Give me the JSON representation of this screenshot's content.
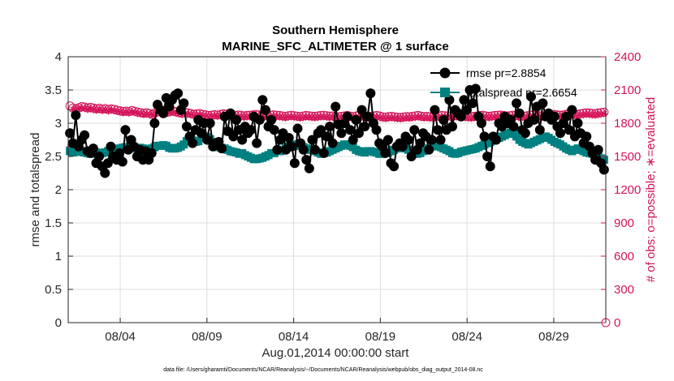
{
  "chart_data": {
    "type": "line",
    "title": "Southern Hemisphere",
    "subtitle": "MARINE_SFC_ALTIMETER @ 1 surface",
    "xlabel": "Aug.01,2014 00:00:00 start",
    "ylabel": "rmse and totalspread",
    "ylabel_right": "# of obs: o=possible; ∗=evaluated",
    "xlim": [
      "2014-08-01",
      "2014-09-01"
    ],
    "ylim": [
      0,
      4
    ],
    "ylim_right": [
      0,
      2400
    ],
    "x_ticks": [
      "08/04",
      "08/09",
      "08/14",
      "08/19",
      "08/24",
      "08/29"
    ],
    "y_ticks": [
      "0",
      "0.5",
      "1",
      "1.5",
      "2",
      "2.5",
      "3",
      "3.5",
      "4"
    ],
    "y_ticks_right": [
      "0",
      "300",
      "600",
      "900",
      "1200",
      "1500",
      "1800",
      "2100",
      "2400"
    ],
    "grid": true,
    "legend_position": "top-right",
    "series": [
      {
        "name": "rmse pr=2.8854",
        "color": "#000000",
        "marker": "circle",
        "axis": "left",
        "values": [
          2.85,
          2.7,
          3.12,
          2.65,
          2.75,
          2.82,
          2.58,
          2.55,
          2.62,
          2.4,
          2.5,
          2.35,
          2.25,
          2.4,
          2.65,
          2.5,
          2.45,
          2.55,
          2.42,
          2.9,
          2.6,
          2.75,
          2.65,
          2.5,
          2.6,
          2.45,
          2.58,
          2.45,
          2.55,
          3.0,
          3.28,
          3.2,
          3.15,
          3.38,
          3.25,
          3.35,
          3.42,
          3.45,
          3.2,
          3.3,
          2.95,
          2.8,
          2.7,
          2.9,
          3.05,
          2.85,
          3.0,
          2.75,
          3.0,
          2.65,
          2.7,
          2.72,
          2.62,
          3.1,
          2.88,
          3.15,
          2.8,
          3.05,
          2.9,
          2.75,
          2.95,
          2.85,
          2.9,
          3.1,
          2.7,
          3.05,
          3.35,
          3.2,
          2.95,
          3.05,
          2.9,
          2.6,
          2.75,
          2.85,
          2.6,
          2.78,
          2.65,
          2.4,
          2.92,
          2.7,
          2.6,
          2.45,
          2.32,
          2.75,
          2.6,
          2.85,
          2.9,
          2.55,
          2.8,
          2.95,
          2.7,
          3.25,
          2.98,
          2.85,
          3.0,
          3.1,
          2.9,
          2.75,
          3.05,
          2.85,
          3.2,
          2.95,
          3.1,
          3.45,
          3.0,
          2.9,
          2.7,
          2.65,
          2.55,
          2.75,
          2.4,
          2.35,
          2.65,
          2.7,
          2.65,
          2.8,
          2.75,
          2.5,
          2.9,
          2.6,
          2.7,
          2.85,
          2.8,
          2.6,
          2.75,
          3.2,
          2.9,
          2.75,
          3.05,
          2.9,
          3.35,
          2.95,
          3.2,
          3.15,
          3.1,
          3.35,
          3.2,
          3.5,
          3.3,
          3.52,
          3.1,
          3.0,
          2.8,
          2.5,
          2.35,
          2.8,
          2.75,
          3.0,
          2.95,
          3.1,
          3.0,
          3.05,
          2.95,
          3.3,
          3.15,
          2.9,
          2.85,
          3.0,
          3.4,
          3.05,
          3.25,
          2.9,
          3.3,
          3.1,
          3.15,
          3.05,
          3.1,
          2.95,
          2.85,
          3.0,
          3.1,
          2.9,
          3.2,
          2.8,
          3.0,
          2.85,
          2.7,
          2.8,
          2.65,
          2.55,
          2.45,
          2.6,
          2.4,
          2.3
        ]
      },
      {
        "name": "totalspread pr=2.6654",
        "color": "#008080",
        "marker": "square",
        "axis": "left",
        "values": [
          2.58,
          2.56,
          2.58,
          2.57,
          2.58,
          2.56,
          2.55,
          2.54,
          2.55,
          2.56,
          2.54,
          2.55,
          2.56,
          2.58,
          2.57,
          2.58,
          2.6,
          2.62,
          2.63,
          2.64,
          2.62,
          2.62,
          2.63,
          2.62,
          2.63,
          2.62,
          2.6,
          2.61,
          2.62,
          2.64,
          2.66,
          2.66,
          2.67,
          2.66,
          2.63,
          2.62,
          2.62,
          2.63,
          2.65,
          2.68,
          2.73,
          2.75,
          2.74,
          2.72,
          2.73,
          2.78,
          2.8,
          2.79,
          2.76,
          2.72,
          2.7,
          2.64,
          2.63,
          2.62,
          2.6,
          2.58,
          2.57,
          2.56,
          2.54,
          2.55,
          2.52,
          2.5,
          2.48,
          2.46,
          2.46,
          2.47,
          2.48,
          2.5,
          2.52,
          2.55,
          2.55,
          2.58,
          2.58,
          2.6,
          2.63,
          2.65,
          2.66,
          2.68,
          2.68,
          2.66,
          2.64,
          2.62,
          2.6,
          2.6,
          2.58,
          2.56,
          2.54,
          2.55,
          2.56,
          2.58,
          2.6,
          2.62,
          2.64,
          2.66,
          2.68,
          2.68,
          2.66,
          2.64,
          2.6,
          2.58,
          2.57,
          2.56,
          2.58,
          2.58,
          2.57,
          2.56,
          2.54,
          2.54,
          2.55,
          2.56,
          2.58,
          2.6,
          2.62,
          2.63,
          2.64,
          2.62,
          2.6,
          2.56,
          2.54,
          2.54,
          2.55,
          2.58,
          2.6,
          2.62,
          2.65,
          2.66,
          2.66,
          2.64,
          2.62,
          2.6,
          2.58,
          2.55,
          2.54,
          2.55,
          2.57,
          2.58,
          2.59,
          2.6,
          2.61,
          2.62,
          2.64,
          2.66,
          2.68,
          2.7,
          2.72,
          2.74,
          2.76,
          2.78,
          2.8,
          2.82,
          2.84,
          2.86,
          2.84,
          2.8,
          2.75,
          2.72,
          2.7,
          2.68,
          2.7,
          2.72,
          2.74,
          2.76,
          2.78,
          2.8,
          2.78,
          2.75,
          2.72,
          2.7,
          2.68,
          2.65,
          2.62,
          2.6,
          2.58,
          2.6,
          2.62,
          2.6,
          2.58,
          2.56,
          2.55,
          2.54,
          2.52,
          2.5,
          2.47,
          2.45
        ]
      },
      {
        "name": "possible",
        "color": "#d4145a",
        "marker": "circle-open",
        "axis": "right",
        "values": [
          1956,
          1936,
          1930,
          1940,
          1950,
          1946,
          1938,
          1944,
          1936,
          1930,
          1935,
          1927,
          1933,
          1924,
          1930,
          1925,
          1918,
          1912,
          1906,
          1910,
          1904,
          1915,
          1908,
          1900,
          1896,
          1890,
          1895,
          1888,
          1880,
          1896,
          1908,
          1915,
          1908,
          1900,
          1906,
          1910,
          1902,
          1896,
          1890,
          1900,
          1892,
          1888,
          1880,
          1885,
          1888,
          1880,
          1876,
          1870,
          1872,
          1878,
          1874,
          1880,
          1885,
          1882,
          1880,
          1876,
          1870,
          1874,
          1872,
          1866,
          1870,
          1872,
          1876,
          1880,
          1875,
          1872,
          1868,
          1870,
          1873,
          1876,
          1872,
          1870,
          1866,
          1862,
          1868,
          1872,
          1868,
          1864,
          1860,
          1865,
          1870,
          1868,
          1864,
          1862,
          1866,
          1870,
          1872,
          1868,
          1864,
          1866,
          1860,
          1858,
          1862,
          1866,
          1870,
          1864,
          1860,
          1866,
          1872,
          1868,
          1864,
          1860,
          1862,
          1866,
          1870,
          1865,
          1858,
          1855,
          1860,
          1862,
          1858,
          1854,
          1852,
          1856,
          1860,
          1858,
          1862,
          1866,
          1870,
          1864,
          1860,
          1862,
          1858,
          1856,
          1862,
          1866,
          1870,
          1868,
          1866,
          1864,
          1866,
          1870,
          1868,
          1864,
          1862,
          1860,
          1858,
          1862,
          1866,
          1870,
          1872,
          1866,
          1862,
          1866,
          1870,
          1872,
          1874,
          1870,
          1866,
          1868,
          1872,
          1870,
          1866,
          1862,
          1864,
          1868,
          1872,
          1876,
          1872,
          1868,
          1866,
          1870,
          1874,
          1878,
          1880,
          1876,
          1872,
          1874,
          1880,
          1886,
          1890,
          1884,
          1880,
          1886,
          1890,
          1894,
          1892,
          1888,
          1886,
          1892,
          1896,
          1900
        ]
      },
      {
        "name": "evaluated",
        "color": "#d4145a",
        "marker": "asterisk",
        "axis": "right",
        "values": [
          1590,
          1924,
          1920,
          1928,
          1936,
          1932,
          1924,
          1930,
          1922,
          1918,
          1922,
          1914,
          1920,
          1910,
          1918,
          1912,
          1906,
          1900,
          1894,
          1898,
          1892,
          1902,
          1896,
          1888,
          1884,
          1878,
          1882,
          1876,
          1868,
          1884,
          1896,
          1904,
          1896,
          1888,
          1894,
          1898,
          1890,
          1884,
          1878,
          1888,
          1880,
          1876,
          1868,
          1872,
          1876,
          1868,
          1864,
          1856,
          1860,
          1866,
          1862,
          1868,
          1872,
          1870,
          1868,
          1862,
          1856,
          1860,
          1858,
          1852,
          1856,
          1858,
          1862,
          1868,
          1862,
          1858,
          1854,
          1856,
          1860,
          1862,
          1858,
          1856,
          1852,
          1848,
          1854,
          1858,
          1854,
          1850,
          1846,
          1850,
          1856,
          1854,
          1850,
          1848,
          1852,
          1856,
          1858,
          1854,
          1850,
          1852,
          1846,
          1844,
          1848,
          1852,
          1856,
          1850,
          1846,
          1852,
          1858,
          1854,
          1850,
          1846,
          1848,
          1852,
          1856,
          1850,
          1844,
          1840,
          1846,
          1848,
          1844,
          1840,
          1838,
          1842,
          1846,
          1844,
          1848,
          1852,
          1856,
          1850,
          1846,
          1848,
          1844,
          1842,
          1848,
          1852,
          1856,
          1854,
          1852,
          1850,
          1852,
          1856,
          1854,
          1850,
          1848,
          1846,
          1844,
          1848,
          1852,
          1856,
          1858,
          1852,
          1848,
          1852,
          1856,
          1858,
          1860,
          1856,
          1852,
          1854,
          1858,
          1856,
          1852,
          1848,
          1850,
          1854,
          1858,
          1862,
          1858,
          1854,
          1852,
          1856,
          1860,
          1864,
          1866,
          1862,
          1858,
          1860,
          1866,
          1872,
          1876,
          1870,
          1866,
          1872,
          1876,
          1880,
          1878,
          1874,
          1872,
          1878,
          1882,
          1886
        ]
      }
    ]
  },
  "footer_text": "data file: /Users/gharamti/Documents/NCAR/Reanalysis/~/Documents/NCAR/Reanalysis/webpub/obs_diag_output_2014-08.nc"
}
